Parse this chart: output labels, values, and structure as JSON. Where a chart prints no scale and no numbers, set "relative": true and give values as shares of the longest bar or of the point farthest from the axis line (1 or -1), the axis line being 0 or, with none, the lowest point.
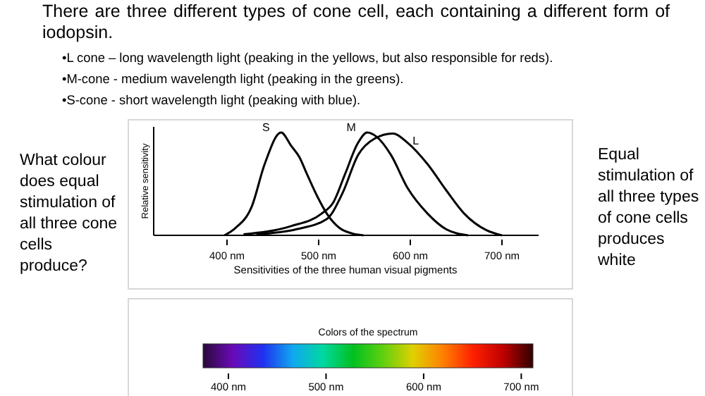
{
  "chart_data": {
    "type": "line",
    "relative": true,
    "xlabel": "Sensitivities of the three human visual pigments",
    "ylabel": "Relative sensitivity",
    "xlim": [
      320,
      740
    ],
    "xticks": [
      {
        "value": 400,
        "label": "400 nm"
      },
      {
        "value": 500,
        "label": "500 nm"
      },
      {
        "value": 600,
        "label": "600 nm"
      },
      {
        "value": 700,
        "label": "700 nm"
      }
    ],
    "legend": false,
    "grid": false,
    "marker": "none",
    "line_style": "solid",
    "series": [
      {
        "name": "S",
        "color": "#000000",
        "x": [
          397,
          409,
          427,
          441,
          459,
          470,
          479,
          487,
          499,
          509,
          523,
          536,
          549
        ],
        "values": [
          0,
          0.07,
          0.28,
          0.69,
          1,
          0.87,
          0.76,
          0.6,
          0.37,
          0.21,
          0.07,
          0.02,
          0
        ]
      },
      {
        "name": "M",
        "color": "#000000",
        "x": [
          418,
          470,
          503,
          516,
          529,
          543,
          553,
          563,
          579,
          597,
          619,
          639,
          663
        ],
        "values": [
          0.01,
          0.09,
          0.21,
          0.32,
          0.6,
          0.9,
          1,
          0.96,
          0.78,
          0.46,
          0.21,
          0.06,
          0
        ]
      },
      {
        "name": "L",
        "color": "#000000",
        "x": [
          432,
          476,
          509,
          526,
          543,
          561,
          581,
          597,
          619,
          639,
          659,
          683,
          700
        ],
        "values": [
          0.01,
          0.06,
          0.16,
          0.41,
          0.78,
          0.94,
          0.99,
          0.9,
          0.69,
          0.44,
          0.21,
          0.05,
          0
        ]
      }
    ],
    "clabel": "Colors of the spectrum",
    "clim": [
      374,
      712
    ],
    "cticks": [
      {
        "value": 400,
        "label": "400 nm"
      },
      {
        "value": 500,
        "label": "500 nm"
      },
      {
        "value": 600,
        "label": "600 nm"
      },
      {
        "value": 700,
        "label": "700 nm"
      }
    ],
    "annotations": [
      "There are three different types of cone cell, each containing a different form of iodopsin.",
      "•L cone – long wavelength light (peaking in the yellows, but also responsible for reds).",
      "•M-cone - medium wavelength light (peaking in the greens).",
      "•S-cone -  short wavelength light (peaking with blue).",
      "What colour does equal stimulation of all three cone cells produce?",
      "Equal stimulation of all three types of cone cells produces white"
    ]
  }
}
